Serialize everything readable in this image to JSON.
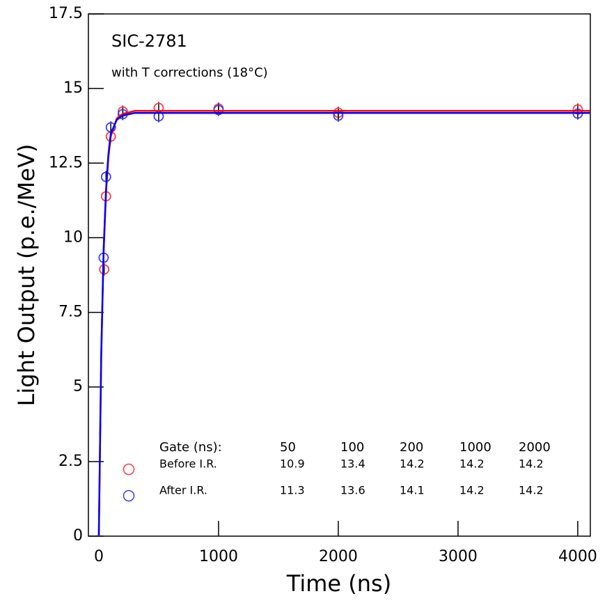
{
  "chart_data": {
    "type": "scatter",
    "title": "SIC-2781",
    "subtitle": "with T corrections (18°C)",
    "x_label": "Time (ns)",
    "y_label": "Light Output (p.e./MeV)",
    "xlim": [
      -87,
      4105
    ],
    "ylim": [
      0,
      17.5
    ],
    "xticks": [
      0,
      1000,
      2000,
      3000,
      4000
    ],
    "yticks": [
      0,
      2.5,
      5,
      7.5,
      10,
      12.5,
      15,
      17.5
    ],
    "gate_label": "Gate (ns):",
    "gates": [
      50,
      100,
      200,
      1000,
      2000
    ],
    "series": [
      {
        "name": "Before I.R.",
        "type": "scatter",
        "color": "#ff3b3b",
        "x": [
          45,
          60,
          100,
          200,
          500,
          1000,
          2000,
          4000
        ],
        "values": [
          8.94,
          11.39,
          13.39,
          14.23,
          14.35,
          14.33,
          14.19,
          14.3
        ],
        "errors": [
          0.2,
          0.2,
          0.2,
          0.2,
          0.2,
          0.2,
          0.2,
          0.2
        ],
        "table_values": [
          10.9,
          13.4,
          14.2,
          14.2,
          14.2
        ]
      },
      {
        "name": "After I.R.",
        "type": "scatter",
        "color": "#3b3bff",
        "x": [
          40,
          60,
          100,
          200,
          500,
          1000,
          2000,
          4000
        ],
        "values": [
          9.33,
          12.04,
          13.7,
          14.14,
          14.07,
          14.28,
          14.09,
          14.16
        ],
        "errors": [
          0.2,
          0.2,
          0.2,
          0.2,
          0.2,
          0.2,
          0.2,
          0.2
        ],
        "table_values": [
          11.3,
          13.6,
          14.1,
          14.2,
          14.2
        ]
      },
      {
        "type": "line",
        "color": "#ff0000",
        "x": [
          0,
          20,
          40,
          60,
          80,
          100,
          150,
          200,
          300,
          4100
        ],
        "values": [
          0,
          6.0,
          9.5,
          11.5,
          12.7,
          13.4,
          14.0,
          14.15,
          14.25,
          14.25
        ]
      },
      {
        "type": "line",
        "color": "#0000ff",
        "x": [
          0,
          20,
          40,
          60,
          80,
          100,
          150,
          200,
          300,
          4100
        ],
        "values": [
          0,
          6.1,
          9.6,
          11.6,
          12.8,
          13.5,
          13.95,
          14.1,
          14.18,
          14.18
        ]
      }
    ]
  }
}
